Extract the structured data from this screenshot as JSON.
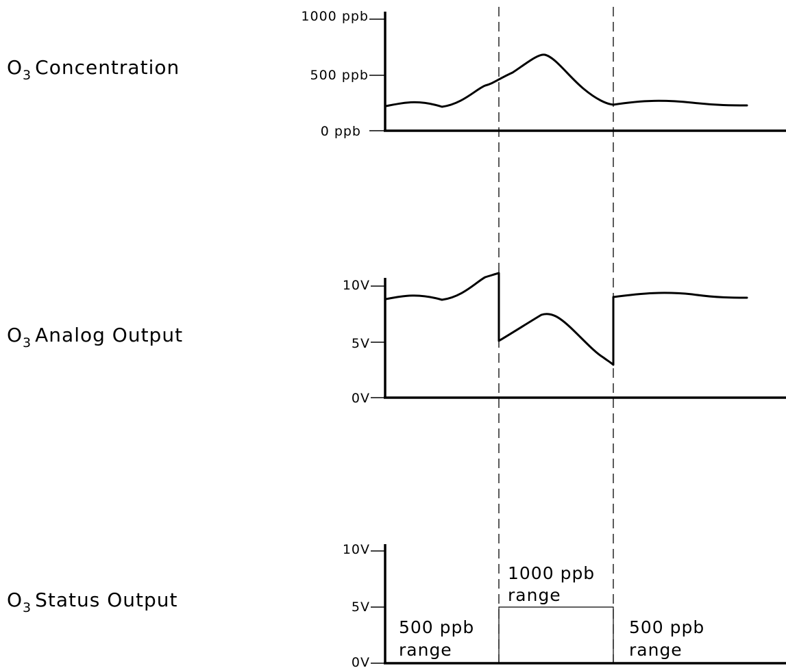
{
  "panels": {
    "concentration": {
      "label_prefix": "O",
      "label_sub": "3",
      "label_rest": "Concentration",
      "ticks": [
        "1000  ppb",
        "500  ppb",
        "0  ppb"
      ]
    },
    "analog": {
      "label_prefix": "O",
      "label_sub": "3",
      "label_rest": "Analog  Output",
      "ticks": [
        "10V",
        "5V",
        "0V"
      ]
    },
    "status": {
      "label_prefix": "O",
      "label_sub": "3",
      "label_rest": "Status  Output",
      "ticks": [
        "10V",
        "5V",
        "0V"
      ],
      "regions": [
        {
          "line1": "500  ppb",
          "line2": "range"
        },
        {
          "line1": "1000  ppb",
          "line2": "range"
        },
        {
          "line1": "500  ppb",
          "line2": "range"
        }
      ]
    }
  }
}
